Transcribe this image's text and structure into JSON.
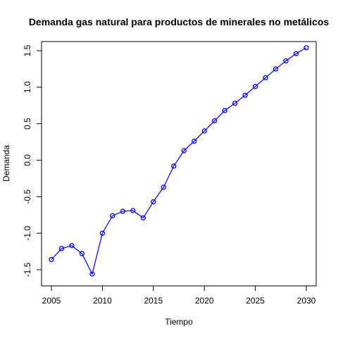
{
  "chart_data": {
    "type": "line",
    "title": "Demanda gas natural para productos de minerales no metálicos",
    "xlabel": "Tiempo",
    "ylabel": "Demanda",
    "xlim": [
      2005,
      2030
    ],
    "ylim": [
      -1.55,
      1.55
    ],
    "x_ticks": [
      2005,
      2010,
      2015,
      2020,
      2025,
      2030
    ],
    "x_tick_labels": [
      "2005",
      "2010",
      "2015",
      "2020",
      "2025",
      "2030"
    ],
    "y_ticks": [
      -1.5,
      -1.0,
      -0.5,
      0.0,
      0.5,
      1.0,
      1.5
    ],
    "y_tick_labels": [
      "-1.5",
      "-1.0",
      "-0.5",
      "0.0",
      "0.5",
      "1.0",
      "1.5"
    ],
    "grid": false,
    "line_color": "#0000ff",
    "marker": "open-circle",
    "x": [
      2005,
      2006,
      2007,
      2008,
      2009,
      2010,
      2011,
      2012,
      2013,
      2014,
      2015,
      2016,
      2017,
      2018,
      2019,
      2020,
      2021,
      2022,
      2023,
      2024,
      2025,
      2026,
      2027,
      2028,
      2029,
      2030
    ],
    "values": [
      -1.36,
      -1.21,
      -1.17,
      -1.28,
      -1.56,
      -1.0,
      -0.76,
      -0.7,
      -0.69,
      -0.79,
      -0.57,
      -0.37,
      -0.08,
      0.13,
      0.26,
      0.4,
      0.54,
      0.68,
      0.78,
      0.89,
      1.01,
      1.13,
      1.25,
      1.36,
      1.46,
      1.54
    ]
  }
}
